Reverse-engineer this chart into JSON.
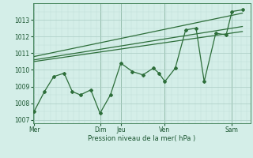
{
  "background_color": "#d4eee8",
  "grid_color_major": "#aaccc4",
  "line_color": "#2d6e3a",
  "ylabel": "Pression niveau de la mer( hPa )",
  "ylim": [
    1006.8,
    1014.0
  ],
  "yticks": [
    1007,
    1008,
    1009,
    1010,
    1011,
    1012,
    1013
  ],
  "day_labels": [
    "Mer",
    "",
    "Dim",
    "Jeu",
    "",
    "Ven",
    "",
    "Sam"
  ],
  "x_vlines": [
    0.05,
    2.9,
    3.8,
    5.7,
    8.6
  ],
  "vline_labels": [
    "Mer",
    "Dim",
    "Jeu",
    "Ven",
    "Sam"
  ],
  "vline_positions": [
    0.05,
    2.9,
    3.8,
    5.7,
    8.6
  ],
  "xlim": [
    0,
    9.4
  ],
  "jagged_x": [
    0.05,
    0.5,
    0.9,
    1.35,
    1.7,
    2.05,
    2.5,
    2.9,
    3.35,
    3.8,
    4.3,
    4.75,
    5.2,
    5.45,
    5.7,
    6.15,
    6.6,
    7.05,
    7.4,
    7.9,
    8.35,
    8.6,
    9.05
  ],
  "jagged_y": [
    1007.5,
    1008.7,
    1009.6,
    1009.8,
    1008.7,
    1008.5,
    1008.8,
    1007.4,
    1008.5,
    1010.4,
    1009.9,
    1009.7,
    1010.1,
    1009.8,
    1009.3,
    1010.1,
    1012.4,
    1012.5,
    1009.3,
    1012.2,
    1012.1,
    1013.5,
    1013.6
  ],
  "trend1_x": [
    0.05,
    9.05
  ],
  "trend1_y": [
    1010.5,
    1012.3
  ],
  "trend2_x": [
    0.05,
    9.05
  ],
  "trend2_y": [
    1010.6,
    1012.6
  ],
  "trend3_x": [
    0.05,
    9.05
  ],
  "trend3_y": [
    1010.8,
    1013.4
  ]
}
